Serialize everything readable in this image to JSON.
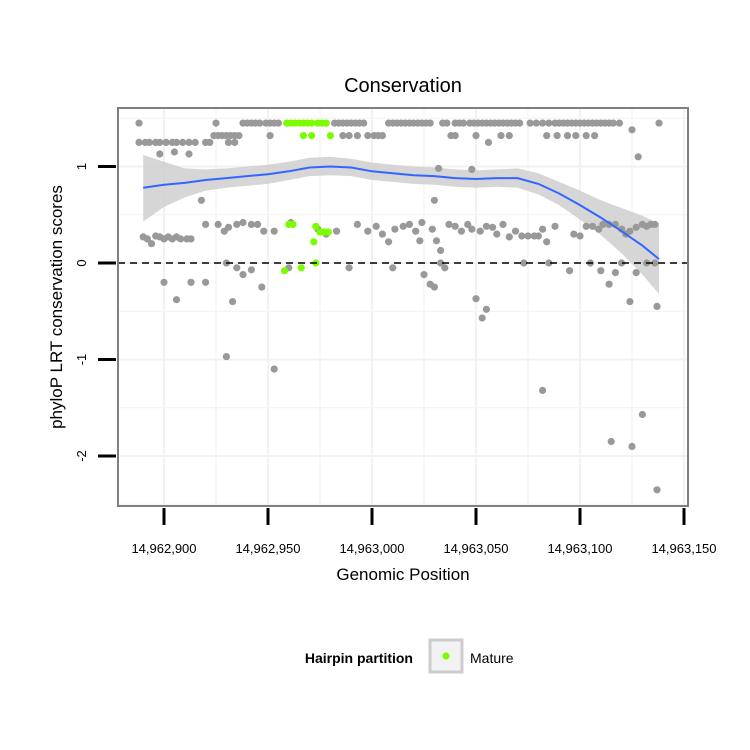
{
  "chart_data": {
    "type": "scatter",
    "title": "Conservation",
    "xlabel": "Genomic Position",
    "ylabel": "phyloP LRT conservation scores",
    "xlim": [
      14962875,
      14963150
    ],
    "ylim": [
      -2.5,
      1.65
    ],
    "x_ticks": [
      14962900,
      14962950,
      14963000,
      14963050,
      14963100,
      14963150
    ],
    "x_tick_labels": [
      "14,962,900",
      "14,962,950",
      "14,963,000",
      "14,963,050",
      "14,963,100",
      "14,963,150"
    ],
    "y_ticks": [
      -2,
      -1,
      0,
      1
    ],
    "y_tick_labels": [
      "-2",
      "-1",
      "0",
      "1"
    ],
    "reference_line": {
      "y": 0,
      "style": "dashed",
      "color": "#000000"
    },
    "grid": true,
    "legend": {
      "title": "Hairpin partition",
      "position": "bottom",
      "entries": [
        {
          "label": "Mature",
          "color": "#7cfc00"
        }
      ]
    },
    "colors": {
      "points": "#999999",
      "mature": "#7cfc00",
      "smooth": "#3366ff",
      "ribbon": "#cccccc",
      "panel_bg": "#ffffff",
      "grid": "#f2f2f2",
      "border": "#7f7f7f"
    },
    "smooth": {
      "x": [
        14962890,
        14962900,
        14962910,
        14962920,
        14962930,
        14962940,
        14962950,
        14962960,
        14962970,
        14962980,
        14962990,
        14963000,
        14963010,
        14963020,
        14963030,
        14963040,
        14963050,
        14963060,
        14963070,
        14963080,
        14963090,
        14963100,
        14963110,
        14963120,
        14963130,
        14963138
      ],
      "y": [
        0.78,
        0.81,
        0.83,
        0.86,
        0.88,
        0.9,
        0.92,
        0.95,
        0.99,
        1.0,
        0.99,
        0.95,
        0.93,
        0.91,
        0.9,
        0.88,
        0.87,
        0.88,
        0.88,
        0.82,
        0.72,
        0.6,
        0.47,
        0.33,
        0.18,
        0.04
      ],
      "lower": [
        0.43,
        0.58,
        0.68,
        0.75,
        0.78,
        0.8,
        0.82,
        0.86,
        0.9,
        0.91,
        0.9,
        0.86,
        0.84,
        0.82,
        0.81,
        0.79,
        0.78,
        0.79,
        0.78,
        0.71,
        0.6,
        0.45,
        0.29,
        0.1,
        -0.12,
        -0.32
      ],
      "upper": [
        1.12,
        1.05,
        0.98,
        0.97,
        0.98,
        1.0,
        1.02,
        1.05,
        1.09,
        1.1,
        1.08,
        1.04,
        1.02,
        1.0,
        0.99,
        0.97,
        0.96,
        0.97,
        0.98,
        0.93,
        0.84,
        0.75,
        0.65,
        0.57,
        0.49,
        0.41
      ]
    },
    "series": [
      {
        "name": "",
        "points": [
          [
            14962888,
            1.45
          ],
          [
            14962888,
            1.25
          ],
          [
            14962891,
            1.25
          ],
          [
            14962893,
            1.25
          ],
          [
            14962896,
            1.25
          ],
          [
            14962898,
            1.25
          ],
          [
            14962901,
            1.25
          ],
          [
            14962904,
            1.25
          ],
          [
            14962906,
            1.25
          ],
          [
            14962909,
            1.25
          ],
          [
            14962912,
            1.25
          ],
          [
            14962915,
            1.25
          ],
          [
            14962898,
            1.13
          ],
          [
            14962905,
            1.15
          ],
          [
            14962912,
            1.13
          ],
          [
            14962920,
            1.25
          ],
          [
            14962922,
            1.25
          ],
          [
            14962924,
            1.32
          ],
          [
            14962926,
            1.32
          ],
          [
            14962928,
            1.32
          ],
          [
            14962925,
            1.45
          ],
          [
            14962930,
            1.32
          ],
          [
            14962932,
            1.32
          ],
          [
            14962934,
            1.32
          ],
          [
            14962936,
            1.32
          ],
          [
            14962938,
            1.45
          ],
          [
            14962940,
            1.45
          ],
          [
            14962942,
            1.45
          ],
          [
            14962944,
            1.45
          ],
          [
            14962946,
            1.45
          ],
          [
            14962949,
            1.45
          ],
          [
            14962951,
            1.45
          ],
          [
            14962953,
            1.45
          ],
          [
            14962955,
            1.45
          ],
          [
            14962931,
            1.25
          ],
          [
            14962934,
            1.25
          ],
          [
            14962951,
            1.32
          ],
          [
            14962918,
            0.65
          ],
          [
            14962982,
            1.45
          ],
          [
            14962984,
            1.45
          ],
          [
            14962986,
            1.45
          ],
          [
            14962988,
            1.45
          ],
          [
            14962990,
            1.45
          ],
          [
            14962992,
            1.45
          ],
          [
            14962994,
            1.45
          ],
          [
            14962996,
            1.45
          ],
          [
            14962986,
            1.32
          ],
          [
            14962989,
            1.32
          ],
          [
            14962993,
            1.32
          ],
          [
            14962998,
            1.32
          ],
          [
            14963001,
            1.32
          ],
          [
            14963003,
            1.32
          ],
          [
            14963005,
            1.32
          ],
          [
            14963008,
            1.45
          ],
          [
            14963010,
            1.45
          ],
          [
            14963012,
            1.45
          ],
          [
            14963014,
            1.45
          ],
          [
            14963016,
            1.45
          ],
          [
            14963018,
            1.45
          ],
          [
            14963020,
            1.45
          ],
          [
            14963022,
            1.45
          ],
          [
            14963024,
            1.45
          ],
          [
            14963026,
            1.45
          ],
          [
            14963028,
            1.45
          ],
          [
            14963034,
            1.45
          ],
          [
            14963036,
            1.45
          ],
          [
            14963038,
            1.32
          ],
          [
            14963040,
            1.32
          ],
          [
            14963040,
            1.45
          ],
          [
            14963042,
            1.45
          ],
          [
            14963044,
            1.45
          ],
          [
            14963047,
            1.45
          ],
          [
            14963049,
            1.45
          ],
          [
            14963051,
            1.45
          ],
          [
            14963053,
            1.45
          ],
          [
            14963055,
            1.45
          ],
          [
            14963057,
            1.45
          ],
          [
            14963059,
            1.45
          ],
          [
            14963061,
            1.45
          ],
          [
            14963063,
            1.45
          ],
          [
            14963065,
            1.45
          ],
          [
            14963067,
            1.45
          ],
          [
            14963069,
            1.45
          ],
          [
            14963071,
            1.45
          ],
          [
            14963050,
            1.32
          ],
          [
            14963056,
            1.25
          ],
          [
            14963062,
            1.32
          ],
          [
            14963066,
            1.32
          ],
          [
            14963076,
            1.45
          ],
          [
            14963079,
            1.45
          ],
          [
            14963082,
            1.45
          ],
          [
            14963085,
            1.45
          ],
          [
            14963088,
            1.45
          ],
          [
            14963090,
            1.45
          ],
          [
            14963092,
            1.45
          ],
          [
            14963094,
            1.45
          ],
          [
            14963096,
            1.45
          ],
          [
            14963098,
            1.45
          ],
          [
            14963100,
            1.45
          ],
          [
            14963102,
            1.45
          ],
          [
            14963104,
            1.45
          ],
          [
            14963106,
            1.45
          ],
          [
            14963108,
            1.45
          ],
          [
            14963110,
            1.45
          ],
          [
            14963112,
            1.45
          ],
          [
            14963114,
            1.45
          ],
          [
            14963116,
            1.45
          ],
          [
            14963119,
            1.45
          ],
          [
            14963084,
            1.32
          ],
          [
            14963089,
            1.32
          ],
          [
            14963094,
            1.32
          ],
          [
            14963098,
            1.32
          ],
          [
            14963103,
            1.32
          ],
          [
            14963107,
            1.32
          ],
          [
            14963125,
            1.38
          ],
          [
            14963128,
            1.1
          ],
          [
            14963138,
            1.45
          ],
          [
            14962890,
            0.27
          ],
          [
            14962892,
            0.25
          ],
          [
            14962894,
            0.2
          ],
          [
            14962896,
            0.28
          ],
          [
            14962898,
            0.27
          ],
          [
            14962900,
            0.25
          ],
          [
            14962902,
            0.27
          ],
          [
            14962904,
            0.25
          ],
          [
            14962906,
            0.27
          ],
          [
            14962908,
            0.25
          ],
          [
            14962911,
            0.25
          ],
          [
            14962913,
            0.25
          ],
          [
            14962920,
            0.4
          ],
          [
            14962926,
            0.4
          ],
          [
            14962929,
            0.33
          ],
          [
            14962931,
            0.37
          ],
          [
            14962935,
            0.4
          ],
          [
            14962938,
            0.42
          ],
          [
            14962942,
            0.4
          ],
          [
            14962945,
            0.4
          ],
          [
            14962948,
            0.33
          ],
          [
            14962953,
            0.33
          ],
          [
            14962961,
            0.42
          ],
          [
            14962974,
            0.35
          ],
          [
            14962978,
            0.3
          ],
          [
            14962983,
            0.33
          ],
          [
            14962993,
            0.4
          ],
          [
            14962998,
            0.33
          ],
          [
            14963002,
            0.38
          ],
          [
            14963005,
            0.3
          ],
          [
            14963008,
            0.22
          ],
          [
            14963011,
            0.35
          ],
          [
            14963015,
            0.38
          ],
          [
            14963018,
            0.4
          ],
          [
            14963021,
            0.33
          ],
          [
            14963023,
            0.23
          ],
          [
            14963024,
            0.42
          ],
          [
            14963029,
            0.35
          ],
          [
            14963031,
            0.23
          ],
          [
            14963033,
            0.13
          ],
          [
            14963037,
            0.4
          ],
          [
            14963040,
            0.38
          ],
          [
            14963043,
            0.33
          ],
          [
            14963046,
            0.4
          ],
          [
            14963048,
            0.35
          ],
          [
            14963052,
            0.33
          ],
          [
            14963055,
            0.38
          ],
          [
            14963058,
            0.37
          ],
          [
            14963060,
            0.3
          ],
          [
            14963063,
            0.4
          ],
          [
            14963066,
            0.27
          ],
          [
            14963069,
            0.33
          ],
          [
            14963072,
            0.28
          ],
          [
            14963075,
            0.28
          ],
          [
            14963078,
            0.28
          ],
          [
            14963080,
            0.28
          ],
          [
            14963082,
            0.35
          ],
          [
            14963084,
            0.22
          ],
          [
            14963088,
            0.38
          ],
          [
            14963097,
            0.3
          ],
          [
            14963100,
            0.28
          ],
          [
            14963103,
            0.38
          ],
          [
            14963106,
            0.38
          ],
          [
            14963109,
            0.35
          ],
          [
            14963111,
            0.4
          ],
          [
            14963114,
            0.4
          ],
          [
            14963117,
            0.4
          ],
          [
            14963120,
            0.35
          ],
          [
            14963122,
            0.3
          ],
          [
            14963124,
            0.33
          ],
          [
            14963127,
            0.37
          ],
          [
            14963130,
            0.4
          ],
          [
            14963132,
            0.38
          ],
          [
            14963134,
            0.4
          ],
          [
            14963136,
            0.4
          ],
          [
            14962900,
            -0.2
          ],
          [
            14962906,
            -0.38
          ],
          [
            14962913,
            -0.2
          ],
          [
            14962920,
            -0.2
          ],
          [
            14962930,
            0.0
          ],
          [
            14962935,
            -0.05
          ],
          [
            14962938,
            -0.12
          ],
          [
            14962942,
            -0.07
          ],
          [
            14962947,
            -0.25
          ],
          [
            14962960,
            -0.05
          ],
          [
            14962989,
            -0.05
          ],
          [
            14963010,
            -0.05
          ],
          [
            14963025,
            -0.12
          ],
          [
            14963028,
            -0.22
          ],
          [
            14963030,
            -0.25
          ],
          [
            14963033,
            0.0
          ],
          [
            14963035,
            -0.05
          ],
          [
            14963050,
            -0.37
          ],
          [
            14963053,
            -0.57
          ],
          [
            14963055,
            -0.48
          ],
          [
            14963073,
            0.0
          ],
          [
            14963085,
            0.0
          ],
          [
            14963095,
            -0.08
          ],
          [
            14963105,
            0.0
          ],
          [
            14963110,
            -0.08
          ],
          [
            14963114,
            -0.22
          ],
          [
            14963117,
            -0.1
          ],
          [
            14963120,
            0.0
          ],
          [
            14963124,
            -0.4
          ],
          [
            14963127,
            -0.1
          ],
          [
            14963132,
            0.0
          ],
          [
            14963136,
            0.0
          ],
          [
            14963137,
            -0.45
          ],
          [
            14962930,
            -0.97
          ],
          [
            14962933,
            -0.4
          ],
          [
            14962953,
            -1.1
          ],
          [
            14963082,
            -1.32
          ],
          [
            14963115,
            -1.85
          ],
          [
            14963125,
            -1.9
          ],
          [
            14963130,
            -1.57
          ],
          [
            14963137,
            -2.35
          ],
          [
            14963030,
            0.65
          ],
          [
            14963032,
            0.98
          ],
          [
            14963048,
            0.97
          ]
        ]
      },
      {
        "name": "Mature",
        "points": [
          [
            14962959,
            1.45
          ],
          [
            14962961,
            1.45
          ],
          [
            14962963,
            1.45
          ],
          [
            14962965,
            1.45
          ],
          [
            14962967,
            1.45
          ],
          [
            14962969,
            1.45
          ],
          [
            14962971,
            1.45
          ],
          [
            14962974,
            1.45
          ],
          [
            14962976,
            1.45
          ],
          [
            14962978,
            1.45
          ],
          [
            14962967,
            1.32
          ],
          [
            14962971,
            1.32
          ],
          [
            14962980,
            1.32
          ],
          [
            14962960,
            0.4
          ],
          [
            14962962,
            0.4
          ],
          [
            14962973,
            0.38
          ],
          [
            14962975,
            0.32
          ],
          [
            14962977,
            0.32
          ],
          [
            14962979,
            0.32
          ],
          [
            14962972,
            0.22
          ],
          [
            14962958,
            -0.08
          ],
          [
            14962966,
            -0.05
          ],
          [
            14962973,
            0.0
          ]
        ]
      }
    ]
  }
}
